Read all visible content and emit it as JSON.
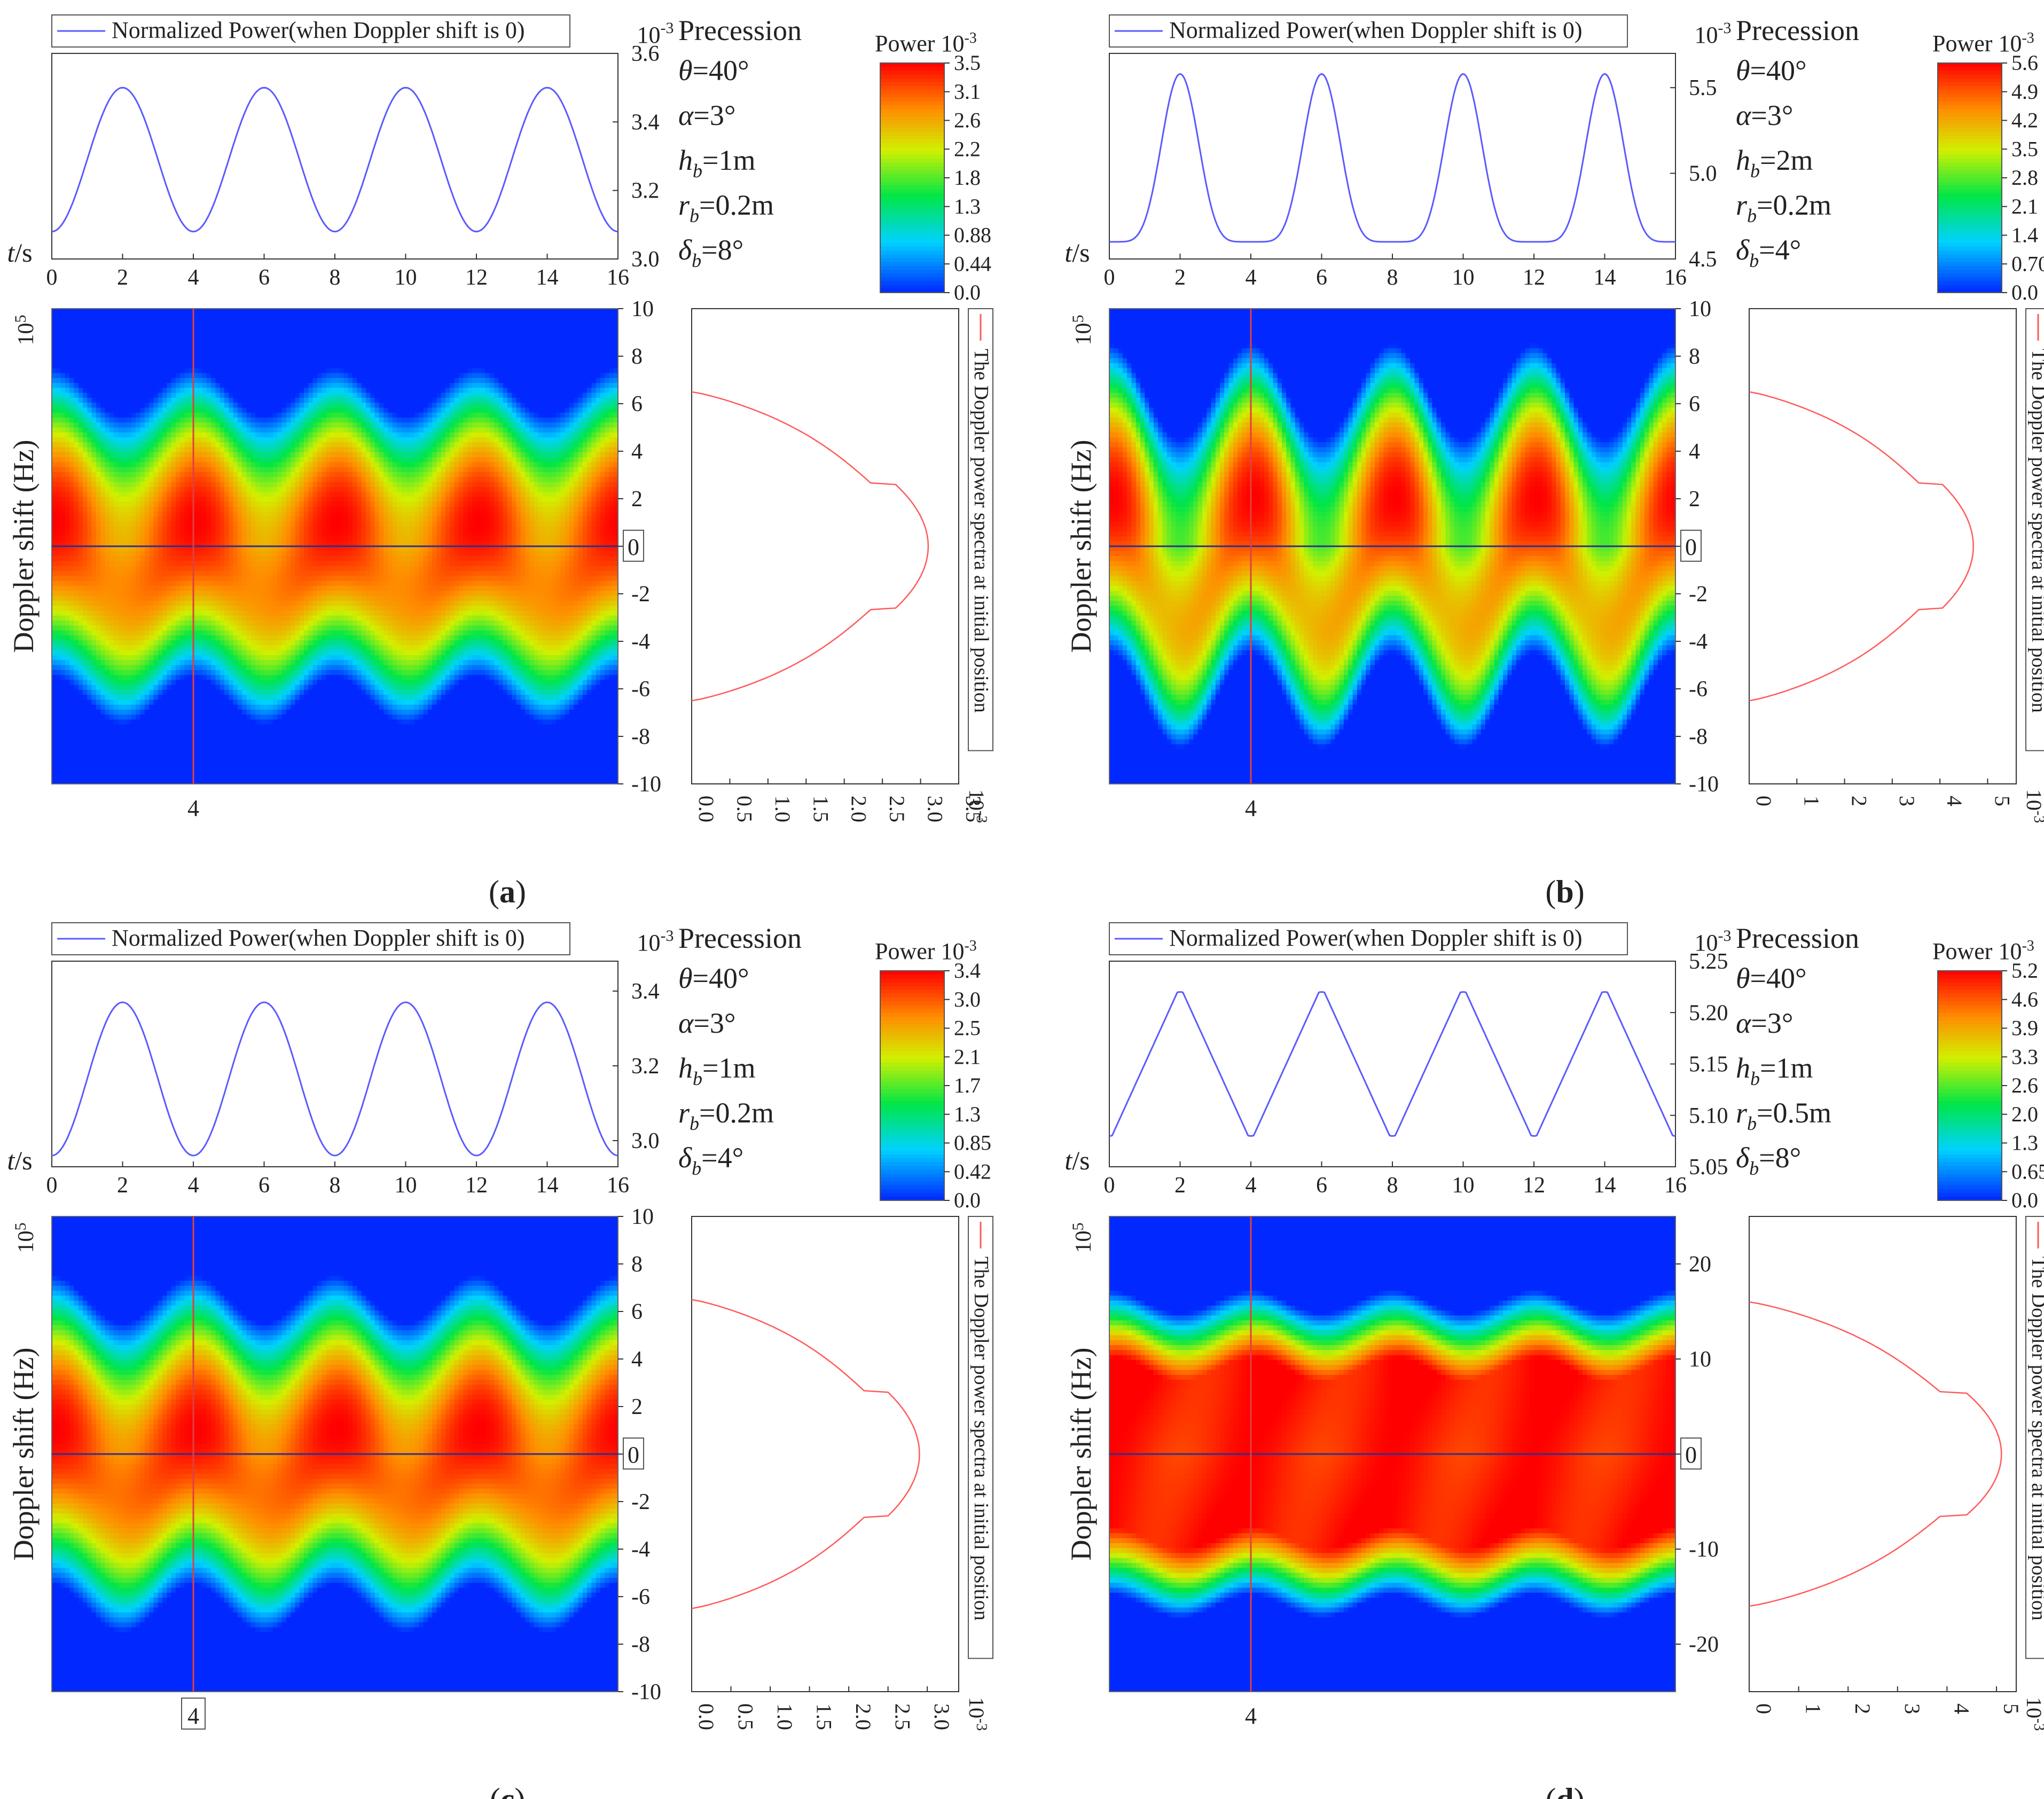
{
  "figure": {
    "colors": {
      "time_line": "#5a5aff",
      "doppler_line": "#ff5a5a",
      "zero_line": "#2e2e8e",
      "marker_line": "#e04040",
      "axis": "#333333"
    },
    "common": {
      "legend_label": "Normalized Power(when Doppler shift is 0)",
      "time_axis_label": "t/s",
      "power_exponent": "10",
      "power_exponent_sup": "-3",
      "doppler_exponent": "10",
      "doppler_exponent_sup": "5",
      "doppler_ylabel": "Doppler shift (Hz)",
      "right_legend_label": "The Doppler power spectra at initial position",
      "precession_label": "Precession",
      "colorbar_label": "Power",
      "marker_label": "4",
      "zero_marker_label": "0"
    }
  },
  "chart_data": [
    {
      "id": "a",
      "type": "heatmap",
      "caption": "a",
      "params": [
        {
          "sym": "θ",
          "sub": "",
          "val": "=40°"
        },
        {
          "sym": "α",
          "sub": "",
          "val": "=3°"
        },
        {
          "sym": "h",
          "sub": "b",
          "val": "=1m"
        },
        {
          "sym": "r",
          "sub": "b",
          "val": "=0.2m"
        },
        {
          "sym": "δ",
          "sub": "b",
          "val": "=8°"
        }
      ],
      "time_plot": {
        "x_ticks": [
          "0",
          "2",
          "4",
          "6",
          "8",
          "10",
          "12",
          "14",
          "16"
        ],
        "xlim": [
          0,
          16
        ],
        "y_ticks": [
          "3.0",
          "3.2",
          "3.4",
          "3.6"
        ],
        "y_tick_values": [
          3.0,
          3.2,
          3.4,
          3.6
        ],
        "ylim": [
          3.0,
          3.6
        ],
        "series": {
          "name": "Normalized Power(when Doppler shift is 0)",
          "min": 3.08,
          "max": 3.5,
          "period": 4,
          "peak_at": 2,
          "shape": "sine"
        }
      },
      "colorbar": {
        "ticks": [
          "3.5",
          "3.1",
          "2.6",
          "2.2",
          "1.8",
          "1.3",
          "0.88",
          "0.44",
          "0.0"
        ],
        "range": [
          0,
          3.5
        ]
      },
      "heatmap": {
        "y_ticks": [
          "10",
          "8",
          "6",
          "4",
          "2",
          "0",
          "-2",
          "-4",
          "-6",
          "-8",
          "-10"
        ],
        "y_tick_values": [
          10,
          8,
          6,
          4,
          2,
          0,
          -2,
          -4,
          -6,
          -8,
          -10
        ],
        "ylim": [
          -10,
          10
        ],
        "xlim": [
          0,
          16
        ],
        "band_halfwidth": 6.5,
        "wave_amplitude": 1.0,
        "period": 4,
        "skew": 0.25,
        "flat_core": 0.0,
        "marker_x": 4
      },
      "spectrum": {
        "x_ticks": [
          "0.0",
          "0.5",
          "1.0",
          "1.5",
          "2.0",
          "2.5",
          "3.0",
          "3.5"
        ],
        "x_tick_values": [
          0,
          0.5,
          1.0,
          1.5,
          2.0,
          2.5,
          3.0,
          3.5
        ],
        "xlim": [
          0,
          3.5
        ],
        "peak": 3.1,
        "support": 6.5,
        "knee": [
          2.0,
          2.5
        ]
      }
    },
    {
      "id": "b",
      "type": "heatmap",
      "caption": "b",
      "params": [
        {
          "sym": "θ",
          "sub": "",
          "val": "=40°"
        },
        {
          "sym": "α",
          "sub": "",
          "val": "=3°"
        },
        {
          "sym": "h",
          "sub": "b",
          "val": "=2m"
        },
        {
          "sym": "r",
          "sub": "b",
          "val": "=0.2m"
        },
        {
          "sym": "δ",
          "sub": "b",
          "val": "=4°"
        }
      ],
      "time_plot": {
        "x_ticks": [
          "0",
          "2",
          "4",
          "6",
          "8",
          "10",
          "12",
          "14",
          "16"
        ],
        "xlim": [
          0,
          16
        ],
        "y_ticks": [
          "4.5",
          "5.0",
          "5.5"
        ],
        "y_tick_values": [
          4.5,
          5.0,
          5.5
        ],
        "ylim": [
          4.5,
          5.7
        ],
        "series": {
          "name": "Normalized Power(when Doppler shift is 0)",
          "min": 4.6,
          "max": 5.58,
          "period": 4,
          "peak_at": 2,
          "shape": "peaked"
        }
      },
      "colorbar": {
        "ticks": [
          "5.6",
          "4.9",
          "4.2",
          "3.5",
          "2.8",
          "2.1",
          "1.4",
          "0.70",
          "0.0"
        ],
        "range": [
          0,
          5.6
        ]
      },
      "heatmap": {
        "y_ticks": [
          "10",
          "8",
          "6",
          "4",
          "2",
          "0",
          "-2",
          "-4",
          "-6",
          "-8",
          "-10"
        ],
        "y_tick_values": [
          10,
          8,
          6,
          4,
          2,
          0,
          -2,
          -4,
          -6,
          -8,
          -10
        ],
        "ylim": [
          -10,
          10
        ],
        "xlim": [
          0,
          16
        ],
        "band_halfwidth": 6.5,
        "wave_amplitude": 2.0,
        "period": 4,
        "skew": 0.45,
        "flat_core": 0.0,
        "marker_x": 4
      },
      "spectrum": {
        "x_ticks": [
          "0",
          "1",
          "2",
          "3",
          "4",
          "5"
        ],
        "x_tick_values": [
          0,
          1,
          2,
          3,
          4,
          5
        ],
        "xlim": [
          0,
          5.6
        ],
        "peak": 4.7,
        "support": 6.5,
        "knee": [
          1.8,
          2.5
        ]
      }
    },
    {
      "id": "c",
      "type": "heatmap",
      "caption": "c",
      "params": [
        {
          "sym": "θ",
          "sub": "",
          "val": "=40°"
        },
        {
          "sym": "α",
          "sub": "",
          "val": "=3°"
        },
        {
          "sym": "h",
          "sub": "b",
          "val": "=1m"
        },
        {
          "sym": "r",
          "sub": "b",
          "val": "=0.2m"
        },
        {
          "sym": "δ",
          "sub": "b",
          "val": "=4°"
        }
      ],
      "time_plot": {
        "x_ticks": [
          "0",
          "2",
          "4",
          "6",
          "8",
          "10",
          "12",
          "14",
          "16"
        ],
        "xlim": [
          0,
          16
        ],
        "y_ticks": [
          "3.0",
          "3.2",
          "3.4"
        ],
        "y_tick_values": [
          3.0,
          3.2,
          3.4
        ],
        "ylim": [
          2.93,
          3.48
        ],
        "series": {
          "name": "Normalized Power(when Doppler shift is 0)",
          "min": 2.96,
          "max": 3.37,
          "period": 4,
          "peak_at": 2,
          "shape": "sine"
        }
      },
      "colorbar": {
        "ticks": [
          "3.4",
          "3.0",
          "2.5",
          "2.1",
          "1.7",
          "1.3",
          "0.85",
          "0.42",
          "0.0"
        ],
        "range": [
          0,
          3.4
        ]
      },
      "heatmap": {
        "y_ticks": [
          "10",
          "8",
          "6",
          "4",
          "2",
          "0",
          "-2",
          "-4",
          "-6",
          "-8",
          "-10"
        ],
        "y_tick_values": [
          10,
          8,
          6,
          4,
          2,
          0,
          -2,
          -4,
          -6,
          -8,
          -10
        ],
        "ylim": [
          -10,
          10
        ],
        "xlim": [
          0,
          16
        ],
        "band_halfwidth": 6.5,
        "wave_amplitude": 1.0,
        "period": 4,
        "skew": 0.2,
        "flat_core": 0.0,
        "marker_x": 4
      },
      "spectrum": {
        "x_ticks": [
          "0.0",
          "0.5",
          "1.0",
          "1.5",
          "2.0",
          "2.5",
          "3.0"
        ],
        "x_tick_values": [
          0,
          0.5,
          1.0,
          1.5,
          2.0,
          2.5,
          3.0
        ],
        "xlim": [
          0,
          3.4
        ],
        "peak": 2.9,
        "support": 6.5,
        "knee": [
          1.4,
          4.2
        ]
      }
    },
    {
      "id": "d",
      "type": "heatmap",
      "caption": "d",
      "params": [
        {
          "sym": "θ",
          "sub": "",
          "val": "=40°"
        },
        {
          "sym": "α",
          "sub": "",
          "val": "=3°"
        },
        {
          "sym": "h",
          "sub": "b",
          "val": "=1m"
        },
        {
          "sym": "r",
          "sub": "b",
          "val": "=0.5m"
        },
        {
          "sym": "δ",
          "sub": "b",
          "val": "=8°"
        }
      ],
      "time_plot": {
        "x_ticks": [
          "0",
          "2",
          "4",
          "6",
          "8",
          "10",
          "12",
          "14",
          "16"
        ],
        "xlim": [
          0,
          16
        ],
        "y_ticks": [
          "5.05",
          "5.10",
          "5.15",
          "5.20",
          "5.25"
        ],
        "y_tick_values": [
          5.05,
          5.1,
          5.15,
          5.2,
          5.25
        ],
        "ylim": [
          5.05,
          5.25
        ],
        "series": {
          "name": "Normalized Power(when Doppler shift is 0)",
          "min": 5.08,
          "max": 5.22,
          "period": 4,
          "peak_at": 2,
          "shape": "triangle"
        }
      },
      "colorbar": {
        "ticks": [
          "5.2",
          "4.6",
          "3.9",
          "3.3",
          "2.6",
          "2.0",
          "1.3",
          "0.65",
          "0.0"
        ],
        "range": [
          0,
          5.2
        ]
      },
      "heatmap": {
        "y_ticks": [
          "20",
          "10",
          "0",
          "-10",
          "-20"
        ],
        "y_tick_values": [
          20,
          10,
          0,
          -10,
          -20
        ],
        "ylim": [
          -25,
          25
        ],
        "xlim": [
          0,
          16
        ],
        "band_halfwidth": 16,
        "wave_amplitude": 1.2,
        "period": 4,
        "skew": 0.1,
        "flat_core": 0.55,
        "marker_x": 4
      },
      "spectrum": {
        "x_ticks": [
          "0",
          "1",
          "2",
          "3",
          "4",
          "5"
        ],
        "x_tick_values": [
          0,
          1,
          2,
          3,
          4,
          5
        ],
        "xlim": [
          0,
          5.4
        ],
        "peak": 5.1,
        "support": 16,
        "knee": [
          1.6,
          12
        ]
      }
    }
  ]
}
